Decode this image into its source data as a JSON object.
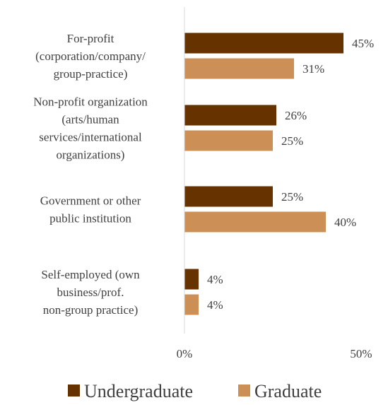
{
  "chart_data": {
    "type": "bar",
    "orientation": "horizontal",
    "categories": [
      [
        "For-profit",
        "(corporation/company/",
        "group-practice)"
      ],
      [
        "Non-profit organization",
        "(arts/human",
        "services/international",
        "organizations)"
      ],
      [
        "Government or other",
        "public institution"
      ],
      [
        "Self-employed (own",
        "business/prof.",
        "non-group practice)"
      ]
    ],
    "series": [
      {
        "name": "Undergraduate",
        "color": "#663300",
        "values": [
          45,
          26,
          25,
          4
        ],
        "labels": [
          "45%",
          "26%",
          "25%",
          "4%"
        ]
      },
      {
        "name": "Graduate",
        "color": "#CC9057",
        "values": [
          31,
          25,
          40,
          4
        ],
        "labels": [
          "31%",
          "25%",
          "40%",
          "4%"
        ]
      }
    ],
    "xlim": [
      0,
      50
    ],
    "x_ticks": [
      "0%",
      "50%"
    ],
    "grid": false,
    "legend_position": "bottom"
  }
}
